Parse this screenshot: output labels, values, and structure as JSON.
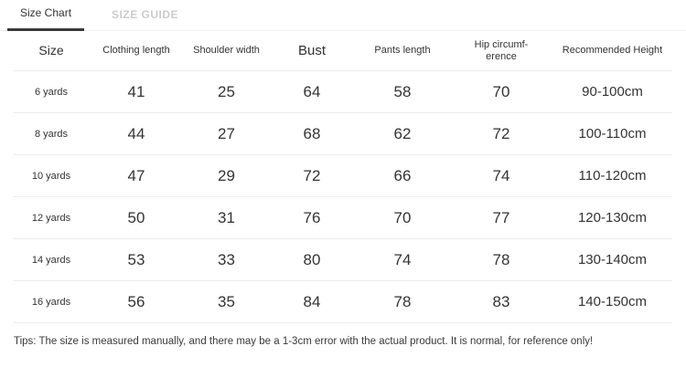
{
  "tabs": [
    {
      "label": "Size Chart",
      "active": true
    },
    {
      "label": "SIZE GUIDE",
      "active": false
    }
  ],
  "table": {
    "headers": [
      "Size",
      "Clothing length",
      "Shoulder width",
      "Bust",
      "Pants length",
      "Hip circumf-erence",
      "Recommended Height"
    ],
    "rows": [
      {
        "size": "6 yards",
        "values": [
          "41",
          "25",
          "64",
          "58",
          "70",
          "90-100cm"
        ]
      },
      {
        "size": "8 yards",
        "values": [
          "44",
          "27",
          "68",
          "62",
          "72",
          "100-110cm"
        ]
      },
      {
        "size": "10 yards",
        "values": [
          "47",
          "29",
          "72",
          "66",
          "74",
          "110-120cm"
        ]
      },
      {
        "size": "12 yards",
        "values": [
          "50",
          "31",
          "76",
          "70",
          "77",
          "120-130cm"
        ]
      },
      {
        "size": "14 yards",
        "values": [
          "53",
          "33",
          "80",
          "74",
          "78",
          "130-140cm"
        ]
      },
      {
        "size": "16 yards",
        "values": [
          "56",
          "35",
          "84",
          "78",
          "83",
          "140-150cm"
        ]
      }
    ]
  },
  "tips": "Tips: The size is measured manually, and there may be a 1-3cm error with the actual product. It is normal, for reference only!"
}
